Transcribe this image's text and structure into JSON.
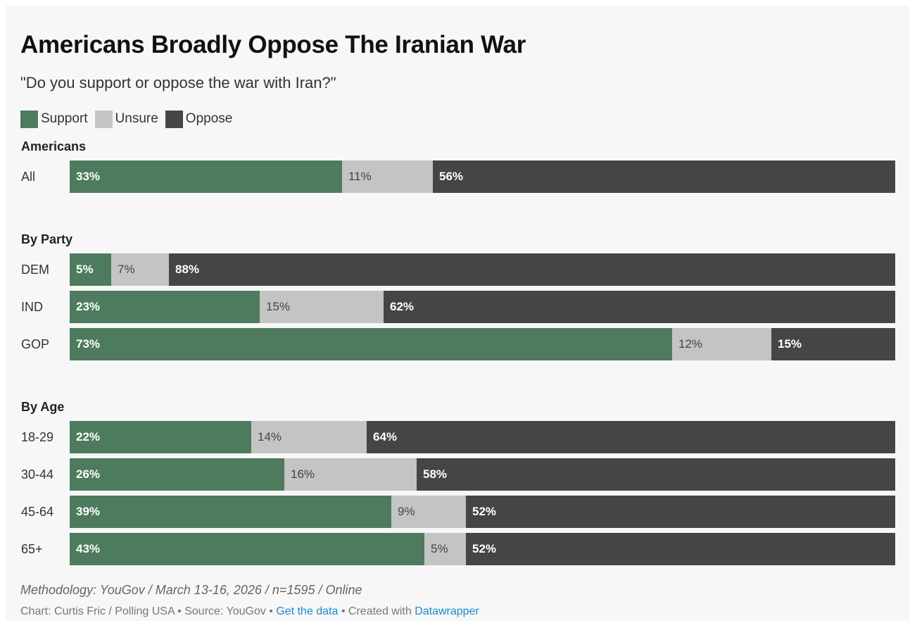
{
  "title": "Americans Broadly Oppose The Iranian War",
  "subtitle": "\"Do you support or oppose the war with Iran?\"",
  "colors": {
    "support": "#4e7b5d",
    "unsure": "#c4c4c4",
    "oppose": "#454545",
    "support_text": "#ffffff",
    "unsure_text": "#444444",
    "oppose_text": "#ffffff"
  },
  "legend": [
    {
      "label": "Support",
      "key": "support"
    },
    {
      "label": "Unsure",
      "key": "unsure"
    },
    {
      "label": "Oppose",
      "key": "oppose"
    }
  ],
  "chart_data": {
    "type": "bar",
    "orientation": "horizontal",
    "stacked": true,
    "xlim": [
      0,
      100
    ],
    "unit": "%",
    "series_names": [
      "Support",
      "Unsure",
      "Oppose"
    ],
    "groups": [
      {
        "title": "Americans",
        "rows": [
          {
            "label": "All",
            "values": [
              33,
              11,
              56
            ]
          }
        ]
      },
      {
        "title": "By Party",
        "rows": [
          {
            "label": "DEM",
            "values": [
              5,
              7,
              88
            ]
          },
          {
            "label": "IND",
            "values": [
              23,
              15,
              62
            ]
          },
          {
            "label": "GOP",
            "values": [
              73,
              12,
              15
            ]
          }
        ]
      },
      {
        "title": "By Age",
        "rows": [
          {
            "label": "18-29",
            "values": [
              22,
              14,
              64
            ]
          },
          {
            "label": "30-44",
            "values": [
              26,
              16,
              58
            ]
          },
          {
            "label": "45-64",
            "values": [
              39,
              9,
              52
            ]
          },
          {
            "label": "65+",
            "values": [
              43,
              5,
              52
            ]
          }
        ]
      }
    ]
  },
  "footer": {
    "methodology": "Methodology: YouGov / March 13-16, 2026 / n=1595 / Online",
    "credit_prefix": "Chart: Curtis Fric / Polling USA • Source: YouGov • ",
    "get_data_link": "Get the data",
    "credit_middle": " • Created with ",
    "datawrapper_link": "Datawrapper"
  }
}
